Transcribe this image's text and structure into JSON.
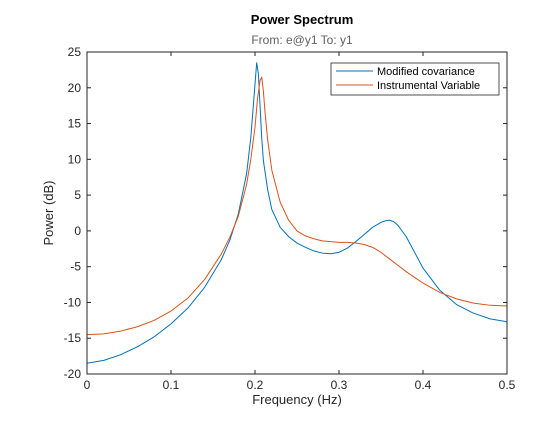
{
  "chart_data": {
    "type": "line",
    "title": "Power Spectrum",
    "subtitle": "From: e@y1  To: y1",
    "xlabel": "Frequency  (Hz)",
    "ylabel": "Power (dB)",
    "xlim": [
      0,
      0.5
    ],
    "ylim": [
      -20,
      25
    ],
    "xticks": [
      0,
      0.1,
      0.2,
      0.3,
      0.4,
      0.5
    ],
    "xtick_labels": [
      "0",
      "0.1",
      "0.2",
      "0.3",
      "0.4",
      "0.5"
    ],
    "yticks": [
      -20,
      -15,
      -10,
      -5,
      0,
      5,
      10,
      15,
      20,
      25
    ],
    "ytick_labels": [
      "-20",
      "-15",
      "-10",
      "-5",
      "0",
      "5",
      "10",
      "15",
      "20",
      "25"
    ],
    "grid": false,
    "legend_position": "top-right",
    "series": [
      {
        "name": "Modified covariance",
        "color": "#0072BD",
        "x": [
          0,
          0.02,
          0.04,
          0.06,
          0.08,
          0.1,
          0.12,
          0.14,
          0.16,
          0.17,
          0.18,
          0.19,
          0.195,
          0.2,
          0.202,
          0.204,
          0.206,
          0.208,
          0.21,
          0.215,
          0.22,
          0.23,
          0.24,
          0.25,
          0.26,
          0.27,
          0.28,
          0.29,
          0.3,
          0.31,
          0.32,
          0.33,
          0.34,
          0.35,
          0.355,
          0.36,
          0.365,
          0.37,
          0.38,
          0.39,
          0.4,
          0.42,
          0.44,
          0.46,
          0.48,
          0.5
        ],
        "y": [
          -18.5,
          -18.1,
          -17.3,
          -16.2,
          -14.8,
          -13.0,
          -10.8,
          -7.9,
          -4.0,
          -1.3,
          2.3,
          8.0,
          13.0,
          20.5,
          23.5,
          22.0,
          17.5,
          13.0,
          9.8,
          5.8,
          3.0,
          0.5,
          -0.8,
          -1.7,
          -2.3,
          -2.8,
          -3.1,
          -3.2,
          -3.0,
          -2.4,
          -1.5,
          -0.5,
          0.5,
          1.2,
          1.4,
          1.5,
          1.3,
          0.8,
          -0.8,
          -3.0,
          -5.2,
          -8.3,
          -10.3,
          -11.5,
          -12.3,
          -12.7
        ]
      },
      {
        "name": "Instrumental Variable",
        "color": "#D95319",
        "x": [
          0,
          0.02,
          0.04,
          0.06,
          0.08,
          0.1,
          0.12,
          0.14,
          0.16,
          0.17,
          0.18,
          0.19,
          0.195,
          0.2,
          0.203,
          0.206,
          0.208,
          0.21,
          0.212,
          0.215,
          0.22,
          0.23,
          0.24,
          0.25,
          0.26,
          0.27,
          0.28,
          0.29,
          0.3,
          0.31,
          0.32,
          0.33,
          0.34,
          0.35,
          0.36,
          0.37,
          0.38,
          0.39,
          0.4,
          0.42,
          0.44,
          0.46,
          0.48,
          0.5
        ],
        "y": [
          -14.5,
          -14.4,
          -14.0,
          -13.4,
          -12.5,
          -11.2,
          -9.4,
          -6.8,
          -3.2,
          -0.9,
          2.0,
          6.5,
          10.0,
          14.5,
          18.5,
          21.0,
          21.5,
          19.5,
          16.5,
          12.8,
          8.5,
          4.0,
          1.5,
          0.0,
          -0.7,
          -1.1,
          -1.4,
          -1.5,
          -1.6,
          -1.6,
          -1.7,
          -1.9,
          -2.3,
          -3.0,
          -3.9,
          -4.8,
          -5.7,
          -6.5,
          -7.3,
          -8.6,
          -9.5,
          -10.1,
          -10.4,
          -10.5
        ]
      }
    ]
  }
}
